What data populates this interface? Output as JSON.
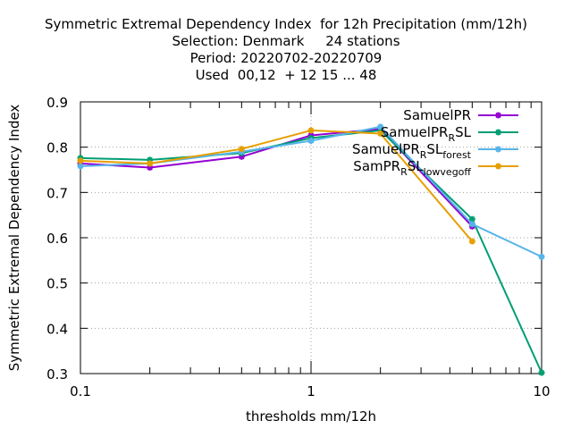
{
  "title_lines": [
    "Symmetric Extremal Dependency Index  for 12h Precipitation (mm/12h)",
    "Selection: Denmark     24 stations",
    "Period: 20220702-20220709",
    "Used  00,12  + 12 15 ... 48"
  ],
  "chart_data": {
    "type": "line",
    "xlabel": "thresholds mm/12h",
    "ylabel": "Symmetric Extremal Dependency Index",
    "xscale": "log",
    "xlim": [
      0.1,
      10
    ],
    "ylim": [
      0.3,
      0.9
    ],
    "xticks": [
      0.1,
      1,
      10
    ],
    "xtick_labels": [
      "0.1",
      "1",
      "10"
    ],
    "yticks": [
      0.3,
      0.4,
      0.5,
      0.6,
      0.7,
      0.8,
      0.9
    ],
    "ytick_labels": [
      "0.3",
      "0.4",
      "0.5",
      "0.6",
      "0.7",
      "0.8",
      "0.9"
    ],
    "grid": true,
    "legend_position": "top-right",
    "series": [
      {
        "name": "SamuelPR",
        "legend_main": "SamuelPR",
        "legend_sub": "",
        "legend_tail": "",
        "color": "#9400d3",
        "x": [
          0.1,
          0.2,
          0.5,
          1,
          2,
          5
        ],
        "y": [
          0.764,
          0.755,
          0.779,
          0.826,
          0.84,
          0.625
        ]
      },
      {
        "name": "SamuelPR_RSL",
        "legend_main": "SamuelPR",
        "legend_sub": "R",
        "legend_tail": "SL",
        "color": "#009e73",
        "x": [
          0.1,
          0.2,
          0.5,
          1,
          2,
          5,
          10
        ],
        "y": [
          0.776,
          0.772,
          0.787,
          0.82,
          0.837,
          0.641,
          0.302
        ]
      },
      {
        "name": "SamuelPR_RSL_forest",
        "legend_main": "SamuelPR",
        "legend_sub": "R",
        "legend_tail": "SL_forest",
        "color": "#56b4e9",
        "x": [
          0.1,
          0.2,
          0.5,
          1,
          2,
          5,
          10
        ],
        "y": [
          0.758,
          0.764,
          0.79,
          0.814,
          0.845,
          0.63,
          0.558
        ]
      },
      {
        "name": "SamPR_RSL_lowvegoff",
        "legend_main": "SamPR",
        "legend_sub": "R",
        "legend_tail": "SL_lowvegoff",
        "color": "#e69f00",
        "x": [
          0.1,
          0.2,
          0.5,
          1,
          2,
          5
        ],
        "y": [
          0.77,
          0.764,
          0.796,
          0.837,
          0.83,
          0.592
        ]
      }
    ]
  }
}
